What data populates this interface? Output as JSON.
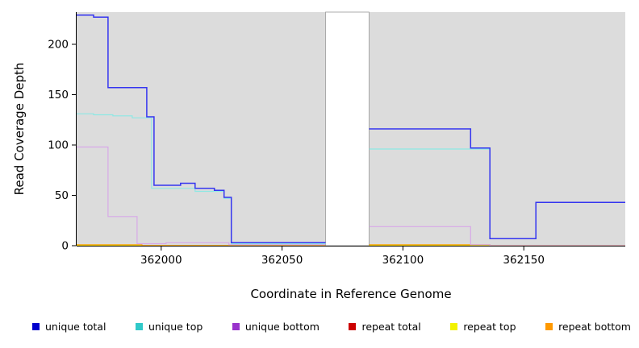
{
  "axes": {
    "x_label": "Coordinate in Reference Genome",
    "y_label": "Read Coverage Depth"
  },
  "chart_data": {
    "type": "line",
    "step": true,
    "title": "",
    "xlabel": "Coordinate in Reference Genome",
    "ylabel": "Read Coverage Depth",
    "xlim": [
      361965,
      362192
    ],
    "ylim": [
      0,
      232
    ],
    "x_ticks": [
      362000,
      362050,
      362100,
      362150
    ],
    "y_ticks": [
      0,
      50,
      100,
      150,
      200
    ],
    "grid": false,
    "plot_background": "#dcdcdc",
    "masked_region": {
      "x0": 362068,
      "x1": 362086,
      "fill": "#ffffff",
      "stroke": "#999999"
    },
    "legend_position": "bottom",
    "series": [
      {
        "name": "unique total",
        "line_color": "#3535f0",
        "width": 1.5,
        "segments": [
          [
            [
              361965,
              229
            ],
            [
              361972,
              227
            ],
            [
              361978,
              157
            ],
            [
              361994,
              128
            ],
            [
              361997,
              60
            ],
            [
              362008,
              62
            ],
            [
              362014,
              57
            ],
            [
              362022,
              55
            ],
            [
              362026,
              48
            ],
            [
              362029,
              3
            ],
            [
              362068,
              3
            ]
          ],
          [
            [
              362086,
              116
            ],
            [
              362128,
              97
            ],
            [
              362136,
              7
            ],
            [
              362155,
              43
            ],
            [
              362192,
              43
            ]
          ]
        ]
      },
      {
        "name": "unique top",
        "line_color": "#8ce8e4",
        "width": 1.2,
        "segments": [
          [
            [
              361965,
              131
            ],
            [
              361972,
              130
            ],
            [
              361980,
              129
            ],
            [
              361988,
              127
            ],
            [
              361996,
              57
            ],
            [
              362014,
              54
            ],
            [
              362026,
              47
            ],
            [
              362029,
              2
            ],
            [
              362068,
              2
            ]
          ],
          [
            [
              362086,
              96
            ],
            [
              362136,
              7
            ],
            [
              362155,
              43
            ],
            [
              362192,
              43
            ]
          ]
        ]
      },
      {
        "name": "unique bottom",
        "line_color": "#d7a8e8",
        "width": 1.2,
        "segments": [
          [
            [
              361965,
              98
            ],
            [
              361978,
              29
            ],
            [
              361990,
              2
            ],
            [
              362002,
              3
            ],
            [
              362028,
              1
            ],
            [
              362068,
              1
            ]
          ],
          [
            [
              362086,
              19
            ],
            [
              362128,
              1
            ],
            [
              362136,
              0
            ],
            [
              362192,
              0
            ]
          ]
        ]
      },
      {
        "name": "repeat total",
        "line_color": "#cd0000",
        "width": 1.2,
        "segments": [
          [
            [
              361965,
              0
            ],
            [
              362068,
              0
            ]
          ],
          [
            [
              362086,
              0
            ],
            [
              362192,
              0
            ]
          ]
        ]
      },
      {
        "name": "repeat top",
        "line_color": "#f0f000",
        "width": 1.2,
        "segments": [
          [
            [
              361965,
              0
            ],
            [
              362068,
              0
            ]
          ],
          [
            [
              362086,
              0
            ],
            [
              362192,
              0
            ]
          ]
        ]
      },
      {
        "name": "repeat bottom",
        "line_color": "#ffa500",
        "width": 1.2,
        "segments": [
          [
            [
              361965,
              1
            ],
            [
              361992,
              0
            ],
            [
              362068,
              0
            ]
          ],
          [
            [
              362086,
              1
            ],
            [
              362136,
              0
            ],
            [
              362192,
              0
            ]
          ]
        ]
      }
    ]
  },
  "legend": {
    "items": [
      {
        "label": "unique total",
        "color": "#0000cd"
      },
      {
        "label": "unique top",
        "color": "#30c9c9"
      },
      {
        "label": "unique bottom",
        "color": "#9933cc"
      },
      {
        "label": "repeat total",
        "color": "#cc0000"
      },
      {
        "label": "repeat top",
        "color": "#f2f200"
      },
      {
        "label": "repeat bottom",
        "color": "#ff9900"
      }
    ]
  }
}
